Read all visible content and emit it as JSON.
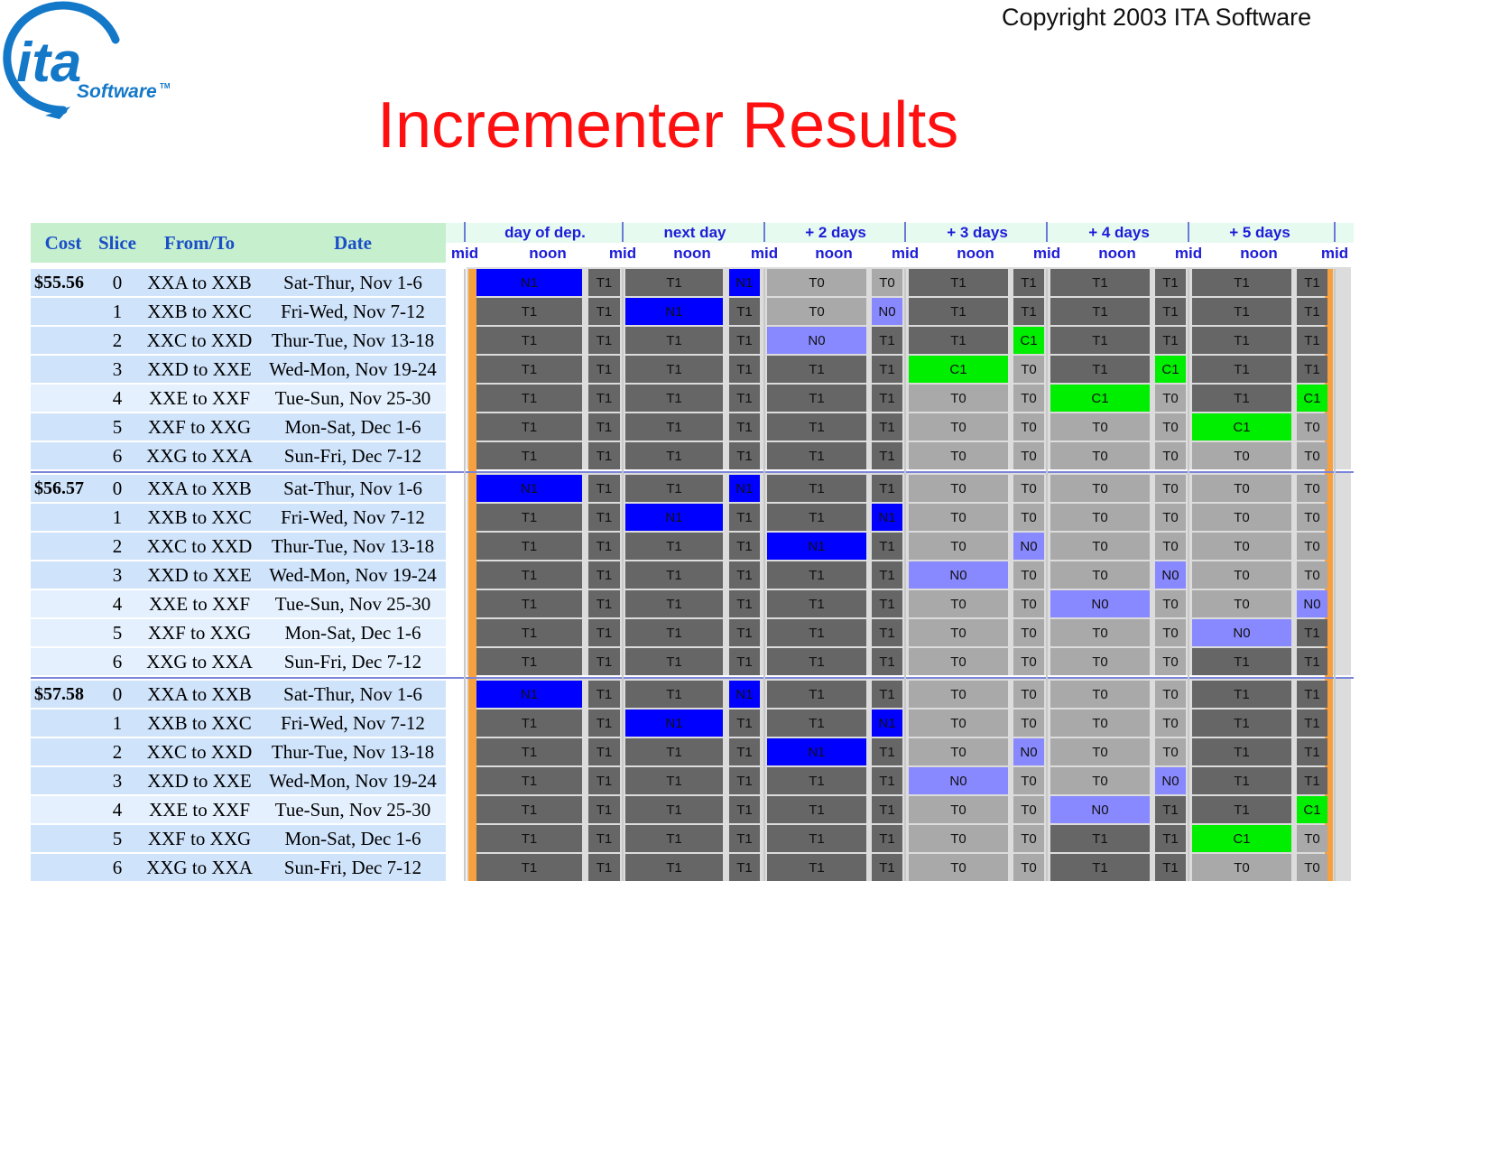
{
  "logo": {
    "word": "ita",
    "sub": "Software",
    "tm": "TM"
  },
  "copyright": "Copyright 2003 ITA Software",
  "title": "Incrementer Results",
  "left_headers": {
    "cost": "Cost",
    "slice": "Slice",
    "fromto": "From/To",
    "date": "Date"
  },
  "day_headers": [
    "day of dep.",
    "next day",
    "+ 2 days",
    "+ 3 days",
    "+ 4 days",
    "+ 5 days"
  ],
  "time_labels": {
    "mid": "mid",
    "noon": "noon"
  },
  "slices": [
    {
      "slice": "0",
      "route": "XXA to XXB",
      "date": "Sat-Thur, Nov 1-6"
    },
    {
      "slice": "1",
      "route": "XXB to XXC",
      "date": "Fri-Wed, Nov 7-12"
    },
    {
      "slice": "2",
      "route": "XXC to XXD",
      "date": "Thur-Tue, Nov 13-18"
    },
    {
      "slice": "3",
      "route": "XXD to XXE",
      "date": "Wed-Mon, Nov 19-24"
    },
    {
      "slice": "4",
      "route": "XXE to XXF",
      "date": "Tue-Sun, Nov 25-30"
    },
    {
      "slice": "5",
      "route": "XXF to XXG",
      "date": "Mon-Sat, Dec 1-6"
    },
    {
      "slice": "6",
      "route": "XXG to XXA",
      "date": "Sun-Fri, Dec 7-12"
    }
  ],
  "groups": [
    {
      "cost": "$55.56",
      "cells": [
        [
          "N1",
          "T1",
          "T1",
          "N1",
          "T0",
          "T0",
          "T1",
          "T1",
          "T1",
          "T1",
          "T1",
          "T1"
        ],
        [
          "T1",
          "T1",
          "N1",
          "T1",
          "T0",
          "N0",
          "T1",
          "T1",
          "T1",
          "T1",
          "T1",
          "T1"
        ],
        [
          "T1",
          "T1",
          "T1",
          "T1",
          "N0",
          "T1",
          "T1",
          "C1",
          "T1",
          "T1",
          "T1",
          "T1"
        ],
        [
          "T1",
          "T1",
          "T1",
          "T1",
          "T1",
          "T1",
          "C1",
          "T0",
          "T1",
          "C1",
          "T1",
          "T1"
        ],
        [
          "T1",
          "T1",
          "T1",
          "T1",
          "T1",
          "T1",
          "T0",
          "T0",
          "C1",
          "T0",
          "T1",
          "C1"
        ],
        [
          "T1",
          "T1",
          "T1",
          "T1",
          "T1",
          "T1",
          "T0",
          "T0",
          "T0",
          "T0",
          "C1",
          "T0"
        ],
        [
          "T1",
          "T1",
          "T1",
          "T1",
          "T1",
          "T1",
          "T0",
          "T0",
          "T0",
          "T0",
          "T0",
          "T0"
        ]
      ]
    },
    {
      "cost": "$56.57",
      "cells": [
        [
          "N1",
          "T1",
          "T1",
          "N1",
          "T1",
          "T1",
          "T0",
          "T0",
          "T0",
          "T0",
          "T0",
          "T0"
        ],
        [
          "T1",
          "T1",
          "N1",
          "T1",
          "T1",
          "N1",
          "T0",
          "T0",
          "T0",
          "T0",
          "T0",
          "T0"
        ],
        [
          "T1",
          "T1",
          "T1",
          "T1",
          "N1",
          "T1",
          "T0",
          "N0",
          "T0",
          "T0",
          "T0",
          "T0"
        ],
        [
          "T1",
          "T1",
          "T1",
          "T1",
          "T1",
          "T1",
          "N0",
          "T0",
          "T0",
          "N0",
          "T0",
          "T0"
        ],
        [
          "T1",
          "T1",
          "T1",
          "T1",
          "T1",
          "T1",
          "T0",
          "T0",
          "N0",
          "T0",
          "T0",
          "N0"
        ],
        [
          "T1",
          "T1",
          "T1",
          "T1",
          "T1",
          "T1",
          "T0",
          "T0",
          "T0",
          "T0",
          "N0",
          "T1"
        ],
        [
          "T1",
          "T1",
          "T1",
          "T1",
          "T1",
          "T1",
          "T0",
          "T0",
          "T0",
          "T0",
          "T1",
          "T1"
        ]
      ]
    },
    {
      "cost": "$57.58",
      "cells": [
        [
          "N1",
          "T1",
          "T1",
          "N1",
          "T1",
          "T1",
          "T0",
          "T0",
          "T0",
          "T0",
          "T1",
          "T1"
        ],
        [
          "T1",
          "T1",
          "N1",
          "T1",
          "T1",
          "N1",
          "T0",
          "T0",
          "T0",
          "T0",
          "T1",
          "T1"
        ],
        [
          "T1",
          "T1",
          "T1",
          "T1",
          "N1",
          "T1",
          "T0",
          "N0",
          "T0",
          "T0",
          "T1",
          "T1"
        ],
        [
          "T1",
          "T1",
          "T1",
          "T1",
          "T1",
          "T1",
          "N0",
          "T0",
          "T0",
          "N0",
          "T1",
          "T1"
        ],
        [
          "T1",
          "T1",
          "T1",
          "T1",
          "T1",
          "T1",
          "T0",
          "T0",
          "N0",
          "T1",
          "T1",
          "C1"
        ],
        [
          "T1",
          "T1",
          "T1",
          "T1",
          "T1",
          "T1",
          "T0",
          "T0",
          "T1",
          "T1",
          "C1",
          "T0"
        ],
        [
          "T1",
          "T1",
          "T1",
          "T1",
          "T1",
          "T1",
          "T0",
          "T0",
          "T1",
          "T1",
          "T0",
          "T0"
        ]
      ]
    }
  ],
  "colors": {
    "N1": "#0000ff",
    "N0": "#8888ff",
    "T1": "#666666",
    "T0": "#a9a9a9",
    "C1": "#00ee00",
    "header_bg_left": "#c6efce",
    "header_bg_right": "#e6faf0",
    "row_bg_a": "#cfe3fb",
    "row_bg_b": "#e4f0fd",
    "edge_orange": "#f7a040",
    "title_red": "#ff1010",
    "blue_text": "#1b4fc7"
  }
}
